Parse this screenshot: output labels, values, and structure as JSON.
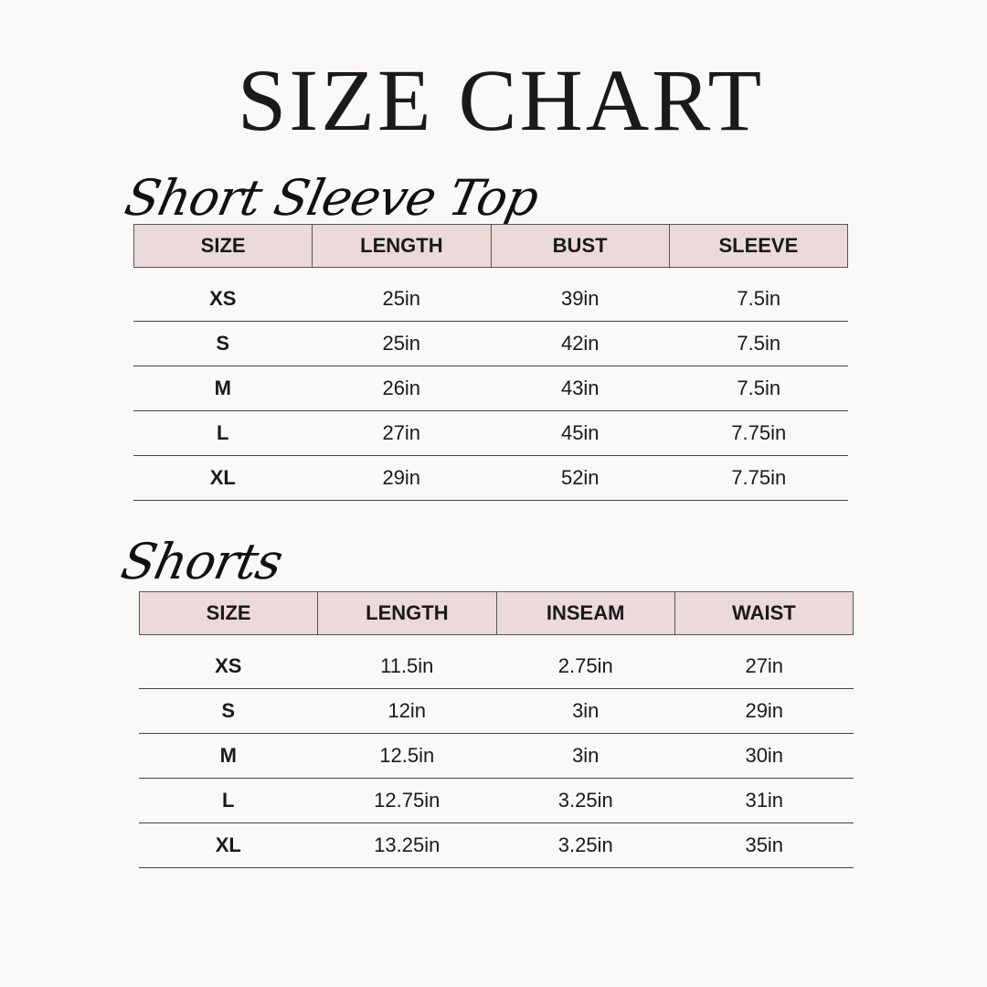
{
  "title": "SIZE CHART",
  "tables": [
    {
      "heading": "Short Sleeve Top",
      "columns": [
        "SIZE",
        "LENGTH",
        "BUST",
        "SLEEVE"
      ],
      "rows": [
        [
          "XS",
          "25in",
          "39in",
          "7.5in"
        ],
        [
          "S",
          "25in",
          "42in",
          "7.5in"
        ],
        [
          "M",
          "26in",
          "43in",
          "7.5in"
        ],
        [
          "L",
          "27in",
          "45in",
          "7.75in"
        ],
        [
          "XL",
          "29in",
          "52in",
          "7.75in"
        ]
      ]
    },
    {
      "heading": "Shorts",
      "columns": [
        "SIZE",
        "LENGTH",
        "INSEAM",
        "WAIST"
      ],
      "rows": [
        [
          "XS",
          "11.5in",
          "2.75in",
          "27in"
        ],
        [
          "S",
          "12in",
          "3in",
          "29in"
        ],
        [
          "M",
          "12.5in",
          "3in",
          "30in"
        ],
        [
          "L",
          "12.75in",
          "3.25in",
          "31in"
        ],
        [
          "XL",
          "13.25in",
          "3.25in",
          "35in"
        ]
      ]
    }
  ],
  "colors": {
    "header_fill": "#ecd9d9",
    "background": "#faf9f7",
    "text": "#1a1a1a"
  }
}
